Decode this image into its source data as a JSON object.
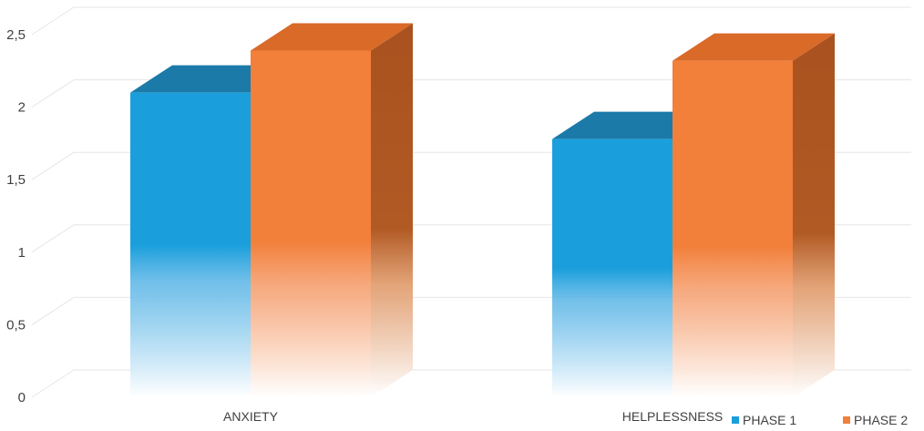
{
  "chart_data": {
    "type": "bar",
    "style": "3d-clustered-column",
    "categories": [
      "ANXIETY",
      "HELPLESSNESS"
    ],
    "series": [
      {
        "name": "PHASE 1",
        "values": [
          2.1,
          1.78
        ],
        "color": "#1a9fdc",
        "top_color": "#1b7aa8"
      },
      {
        "name": "PHASE 2",
        "values": [
          2.39,
          2.32
        ],
        "color": "#f27f3a",
        "top_color": "#d96a28",
        "side_color": "#a9521f"
      }
    ],
    "ylim": [
      0,
      2.5
    ],
    "yticks": [
      "0",
      "0,5",
      "1",
      "1,5",
      "2",
      "2,5"
    ],
    "ytick_values": [
      0,
      0.5,
      1,
      1.5,
      2,
      2.5
    ],
    "grid": true,
    "legend": "bottom-right",
    "title": "",
    "xlabel": "",
    "ylabel": ""
  }
}
